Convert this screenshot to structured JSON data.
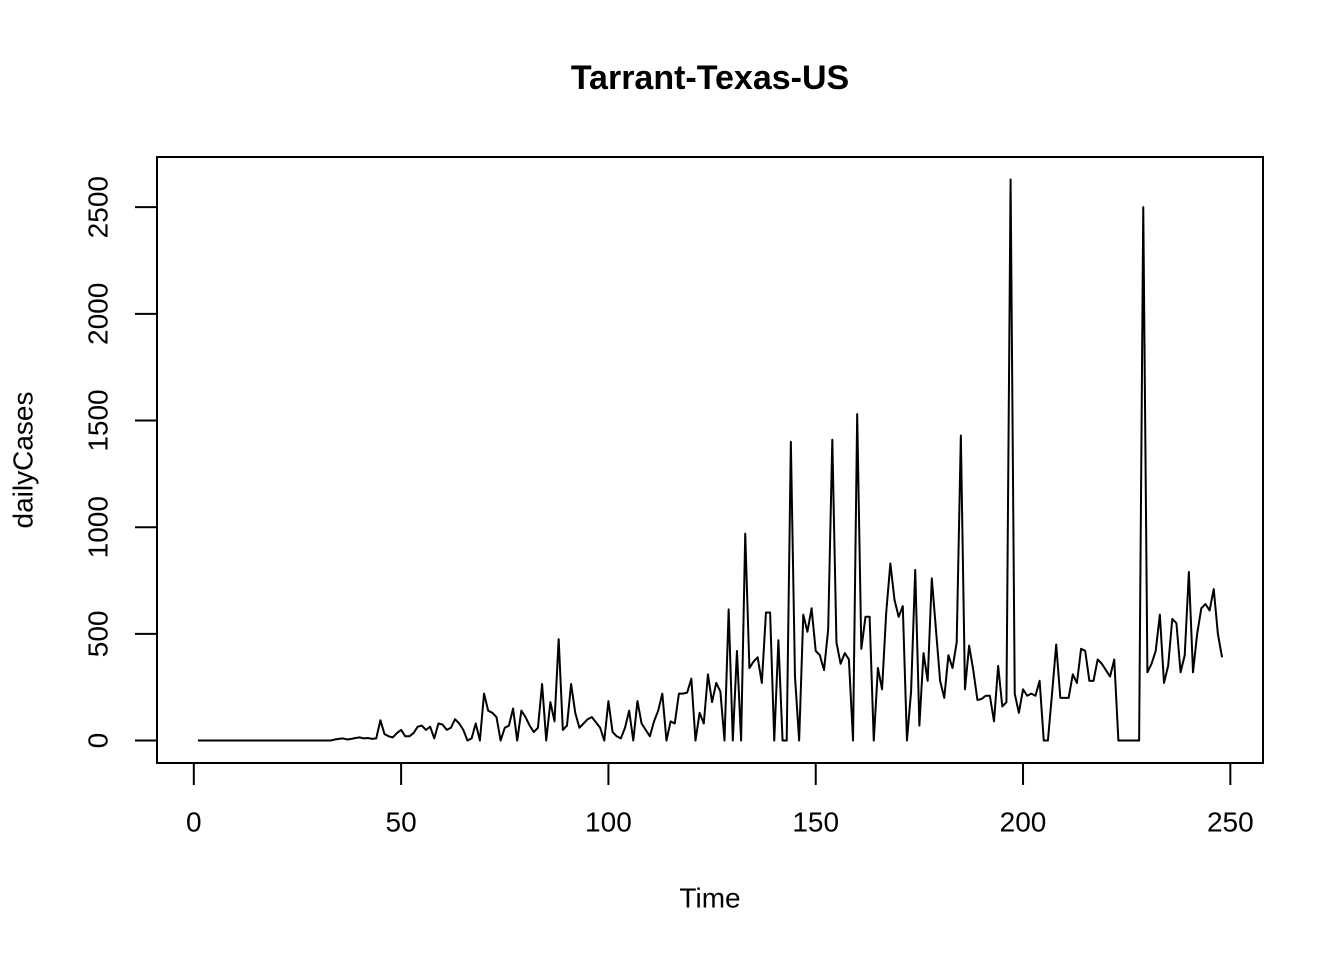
{
  "chart_data": {
    "type": "line",
    "title": "Tarrant-Texas-US",
    "x_label": "Time",
    "y_label": "dailyCases",
    "color": "#000000",
    "x": [
      1,
      2,
      3,
      4,
      5,
      6,
      7,
      8,
      9,
      10,
      11,
      12,
      13,
      14,
      15,
      16,
      17,
      18,
      19,
      20,
      21,
      22,
      23,
      24,
      25,
      26,
      27,
      28,
      29,
      30,
      31,
      32,
      33,
      34,
      35,
      36,
      37,
      38,
      39,
      40,
      41,
      42,
      43,
      44,
      45,
      46,
      47,
      48,
      49,
      50,
      51,
      52,
      53,
      54,
      55,
      56,
      57,
      58,
      59,
      60,
      61,
      62,
      63,
      64,
      65,
      66,
      67,
      68,
      69,
      70,
      71,
      72,
      73,
      74,
      75,
      76,
      77,
      78,
      79,
      80,
      81,
      82,
      83,
      84,
      85,
      86,
      87,
      88,
      89,
      90,
      91,
      92,
      93,
      94,
      95,
      96,
      97,
      98,
      99,
      100,
      101,
      102,
      103,
      104,
      105,
      106,
      107,
      108,
      109,
      110,
      111,
      112,
      113,
      114,
      115,
      116,
      117,
      118,
      119,
      120,
      121,
      122,
      123,
      124,
      125,
      126,
      127,
      128,
      129,
      130,
      131,
      132,
      133,
      134,
      135,
      136,
      137,
      138,
      139,
      140,
      141,
      142,
      143,
      144,
      145,
      146,
      147,
      148,
      149,
      150,
      151,
      152,
      153,
      154,
      155,
      156,
      157,
      158,
      159,
      160,
      161,
      162,
      163,
      164,
      165,
      166,
      167,
      168,
      169,
      170,
      171,
      172,
      173,
      174,
      175,
      176,
      177,
      178,
      179,
      180,
      181,
      182,
      183,
      184,
      185,
      186,
      187,
      188,
      189,
      190,
      191,
      192,
      193,
      194,
      195,
      196,
      197,
      198,
      199,
      200,
      201,
      202,
      203,
      204,
      205,
      206,
      207,
      208,
      209,
      210,
      211,
      212,
      213,
      214,
      215,
      216,
      217,
      218,
      219,
      220,
      221,
      222,
      223,
      224,
      225,
      226,
      227,
      228,
      229,
      230,
      231,
      232,
      233,
      234,
      235,
      236,
      237,
      238,
      239,
      240,
      241,
      242,
      243,
      244,
      245,
      246,
      247,
      248
    ],
    "values": [
      0,
      0,
      0,
      0,
      0,
      0,
      0,
      0,
      0,
      0,
      0,
      0,
      0,
      0,
      0,
      0,
      0,
      0,
      0,
      0,
      0,
      0,
      0,
      0,
      0,
      0,
      0,
      0,
      0,
      0,
      0,
      0,
      0,
      5,
      8,
      10,
      5,
      8,
      12,
      15,
      10,
      12,
      8,
      10,
      95,
      30,
      20,
      15,
      35,
      50,
      20,
      20,
      35,
      65,
      70,
      50,
      65,
      10,
      80,
      75,
      50,
      60,
      100,
      80,
      50,
      0,
      10,
      80,
      0,
      220,
      140,
      130,
      110,
      0,
      60,
      70,
      150,
      0,
      140,
      110,
      70,
      40,
      60,
      265,
      0,
      180,
      90,
      475,
      50,
      70,
      265,
      130,
      60,
      80,
      100,
      110,
      85,
      60,
      0,
      185,
      40,
      20,
      10,
      60,
      140,
      0,
      185,
      80,
      50,
      20,
      90,
      140,
      220,
      0,
      90,
      80,
      220,
      220,
      225,
      290,
      0,
      130,
      80,
      310,
      180,
      270,
      230,
      0,
      615,
      0,
      420,
      0,
      970,
      340,
      370,
      390,
      270,
      600,
      600,
      0,
      470,
      0,
      0,
      1400,
      300,
      0,
      590,
      510,
      620,
      420,
      400,
      330,
      520,
      1410,
      460,
      360,
      410,
      380,
      0,
      1530,
      430,
      580,
      580,
      0,
      340,
      240,
      600,
      830,
      660,
      580,
      630,
      0,
      230,
      800,
      70,
      410,
      280,
      760,
      520,
      280,
      200,
      400,
      340,
      460,
      1430,
      240,
      445,
      330,
      190,
      195,
      210,
      210,
      90,
      350,
      160,
      180,
      2630,
      220,
      130,
      240,
      210,
      220,
      210,
      280,
      0,
      0,
      220,
      450,
      200,
      200,
      200,
      310,
      270,
      430,
      420,
      280,
      280,
      380,
      360,
      330,
      300,
      380,
      0,
      0,
      0,
      0,
      0,
      0,
      2500,
      320,
      360,
      420,
      590,
      270,
      350,
      570,
      550,
      320,
      400,
      790,
      320,
      500,
      620,
      640,
      610,
      710,
      500,
      390
    ],
    "xlim": [
      -8.88,
      257.88
    ],
    "ylim": [
      -105.2,
      2735.2
    ],
    "xticks": [
      0,
      50,
      100,
      150,
      200,
      250
    ],
    "yticks": [
      0,
      500,
      1000,
      1500,
      2000,
      2500
    ]
  }
}
